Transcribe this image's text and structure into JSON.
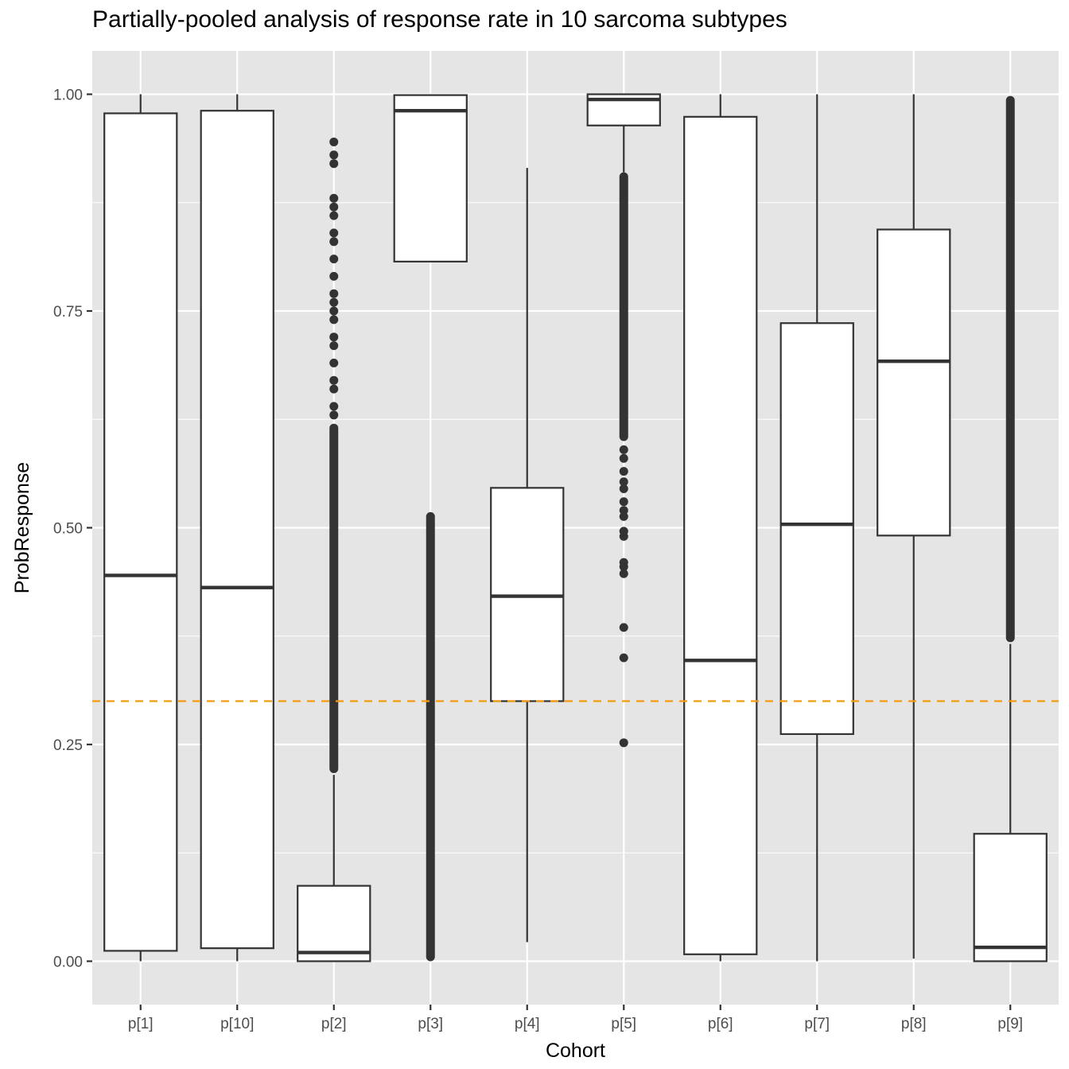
{
  "chart_data": {
    "type": "boxplot",
    "title": "Partially-pooled analysis of response rate in 10 sarcoma subtypes",
    "xlabel": "Cohort",
    "ylabel": "ProbResponse",
    "ylim": [
      -0.05,
      1.05
    ],
    "yticks": [
      0.0,
      0.25,
      0.5,
      0.75,
      1.0
    ],
    "ytick_labels": [
      "0.00",
      "0.25",
      "0.50",
      "0.75",
      "1.00"
    ],
    "grid": true,
    "reference_line": {
      "y": 0.3,
      "style": "dashed",
      "color": "#f39c12"
    },
    "categories": [
      "p[1]",
      "p[10]",
      "p[2]",
      "p[3]",
      "p[4]",
      "p[5]",
      "p[6]",
      "p[7]",
      "p[8]",
      "p[9]"
    ],
    "boxes": [
      {
        "label": "p[1]",
        "whisker_low": 0.0,
        "q1": 0.012,
        "median": 0.445,
        "q3": 0.978,
        "whisker_high": 1.0,
        "outliers": []
      },
      {
        "label": "p[10]",
        "whisker_low": 0.0,
        "q1": 0.015,
        "median": 0.431,
        "q3": 0.981,
        "whisker_high": 1.0,
        "outliers": []
      },
      {
        "label": "p[2]",
        "whisker_low": 0.0,
        "q1": 0.0,
        "median": 0.01,
        "q3": 0.087,
        "whisker_high": 0.215,
        "outlier_band": [
          0.217,
          0.62
        ],
        "outliers": [
          0.63,
          0.64,
          0.66,
          0.67,
          0.69,
          0.71,
          0.72,
          0.74,
          0.75,
          0.76,
          0.77,
          0.79,
          0.81,
          0.83,
          0.84,
          0.86,
          0.87,
          0.88,
          0.92,
          0.93,
          0.945
        ]
      },
      {
        "label": "p[3]",
        "whisker_low": 0.807,
        "q1": 0.807,
        "median": 0.981,
        "q3": 0.999,
        "whisker_high": 1.0,
        "outlier_band": [
          0.0,
          0.518
        ],
        "outliers": []
      },
      {
        "label": "p[4]",
        "whisker_low": 0.022,
        "q1": 0.3,
        "median": 0.421,
        "q3": 0.546,
        "whisker_high": 0.915,
        "outliers": []
      },
      {
        "label": "p[5]",
        "whisker_low": 0.91,
        "q1": 0.964,
        "median": 0.994,
        "q3": 1.0,
        "whisker_high": 1.0,
        "outlier_band": [
          0.6,
          0.91
        ],
        "outliers": [
          0.252,
          0.35,
          0.385,
          0.447,
          0.455,
          0.46,
          0.49,
          0.496,
          0.513,
          0.52,
          0.53,
          0.545,
          0.553,
          0.565,
          0.58,
          0.59
        ]
      },
      {
        "label": "p[6]",
        "whisker_low": 0.0,
        "q1": 0.008,
        "median": 0.347,
        "q3": 0.974,
        "whisker_high": 1.0,
        "outliers": []
      },
      {
        "label": "p[7]",
        "whisker_low": 0.0,
        "q1": 0.262,
        "median": 0.504,
        "q3": 0.736,
        "whisker_high": 1.0,
        "outliers": []
      },
      {
        "label": "p[8]",
        "whisker_low": 0.003,
        "q1": 0.491,
        "median": 0.692,
        "q3": 0.844,
        "whisker_high": 1.0,
        "outliers": []
      },
      {
        "label": "p[9]",
        "whisker_low": 0.0,
        "q1": 0.0,
        "median": 0.016,
        "q3": 0.147,
        "whisker_high": 0.366,
        "outlier_band": [
          0.368,
          0.998
        ],
        "outliers": []
      }
    ],
    "colors": {
      "panel_background": "#e5e5e5",
      "grid": "#ffffff",
      "box_fill": "#ffffff",
      "box_stroke": "#333333",
      "point": "#333333",
      "reference_line": "#f39c12"
    }
  }
}
